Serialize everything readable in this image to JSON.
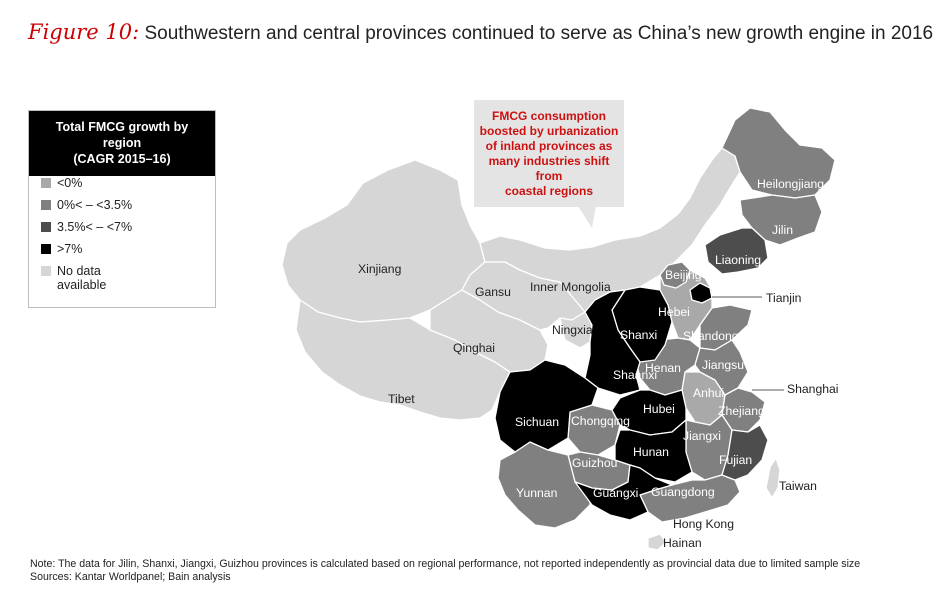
{
  "title": {
    "prefix": "Figure 10:",
    "text": "Southwestern and central provinces continued to serve as China’s new growth engine in 2016"
  },
  "legend": {
    "heading_line1": "Total FMCG growth by region",
    "heading_line2": "(CAGR 2015–16)",
    "items": [
      {
        "label": "<0%",
        "color": "#a9a9a9"
      },
      {
        "label": "0%< – <3.5%",
        "color": "#808080"
      },
      {
        "label": "3.5%< – <7%",
        "color": "#4d4d4d"
      },
      {
        "label": ">7%",
        "color": "#000000"
      },
      {
        "label_line1": "No data",
        "label_line2": "available",
        "color": "#d6d6d6"
      }
    ]
  },
  "callout": {
    "text_lines": [
      "FMCG consumption",
      "boosted by urbanization",
      "of inland provinces as",
      "many industries shift from",
      "coastal regions"
    ]
  },
  "regions": {
    "xinjiang": "Xinjiang",
    "gansu": "Gansu",
    "inner_mongolia": "Inner Mongolia",
    "ningxia": "Ningxia",
    "qinghai": "Qinghai",
    "tibet": "Tibet",
    "heilongjiang": "Heilongjiang",
    "jilin": "Jilin",
    "liaoning": "Liaoning",
    "beijing": "Beijing",
    "tianjin": "Tianjin",
    "hebei": "Hebei",
    "shandong": "Shandong",
    "shanxi": "Shanxi",
    "shaanxi": "Shaanxi",
    "henan": "Henan",
    "jiangsu": "Jiangsu",
    "anhui": "Anhui",
    "shanghai": "Shanghai",
    "zhejiang": "Zhejiang",
    "hubei": "Hubei",
    "sichuan": "Sichuan",
    "chongqing": "Chongqing",
    "jiangxi": "Jiangxi",
    "hunan": "Hunan",
    "fujian": "Fujian",
    "guizhou": "Guizhou",
    "taiwan": "Taiwan",
    "yunnan": "Yunnan",
    "guangxi": "Guangxi",
    "guangdong": "Guangdong",
    "hong_kong": "Hong Kong",
    "hainan": "Hainan"
  },
  "colors": {
    "below_0": "#a9a9a9",
    "low": "#808080",
    "mid": "#4d4d4d",
    "high": "#000000",
    "no_data": "#d6d6d6",
    "accent_red": "#cc0000"
  },
  "notes": {
    "note": "Note: The data for Jilin, Shanxi, Jiangxi, Guizhou provinces is calculated based on regional performance, not reported independently as provincial data due to limited sample size",
    "sources": "Sources: Kantar Worldpanel; Bain analysis"
  }
}
